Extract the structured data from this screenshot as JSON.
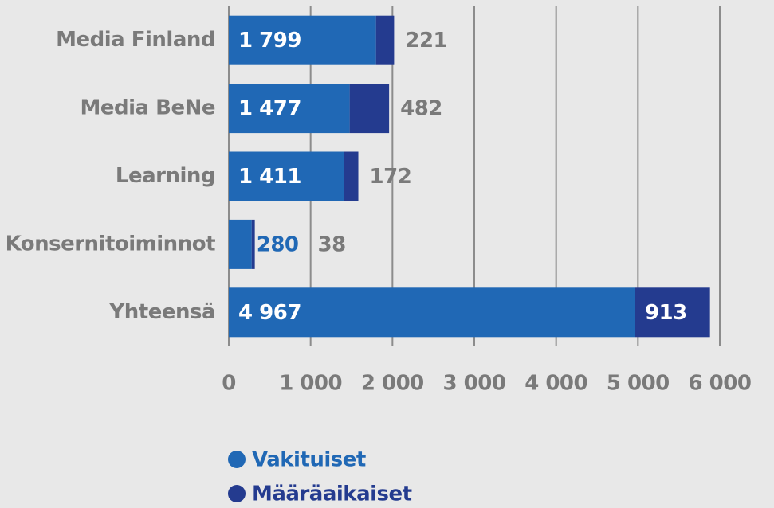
{
  "chart_data": {
    "type": "stacked_barh",
    "categories": [
      "Media Finland",
      "Media BeNe",
      "Learning",
      "Konsernitoiminnot",
      "Yhteensä"
    ],
    "series": [
      {
        "name": "Vakituiset",
        "color": "#2068b5",
        "values": [
          1799,
          1477,
          1411,
          280,
          4967
        ],
        "value_labels": [
          "1 799",
          "1 477",
          "1 411",
          "280",
          "4 967"
        ]
      },
      {
        "name": "Määräaikaiset",
        "color": "#243b8f",
        "values": [
          221,
          482,
          172,
          38,
          913
        ]
      }
    ],
    "xlim": [
      0,
      6000
    ],
    "xticks": [
      0,
      {
        "value": 1000,
        "label": "1 000"
      },
      {
        "value": 2000,
        "label": "2 000"
      },
      {
        "value": 3000,
        "label": "3 000"
      },
      {
        "value": 4000,
        "label": "4 000"
      },
      {
        "value": 5000,
        "label": "5 000"
      },
      {
        "value": 6000,
        "label": "6 000"
      }
    ],
    "grid": true,
    "legend": "bottom"
  }
}
